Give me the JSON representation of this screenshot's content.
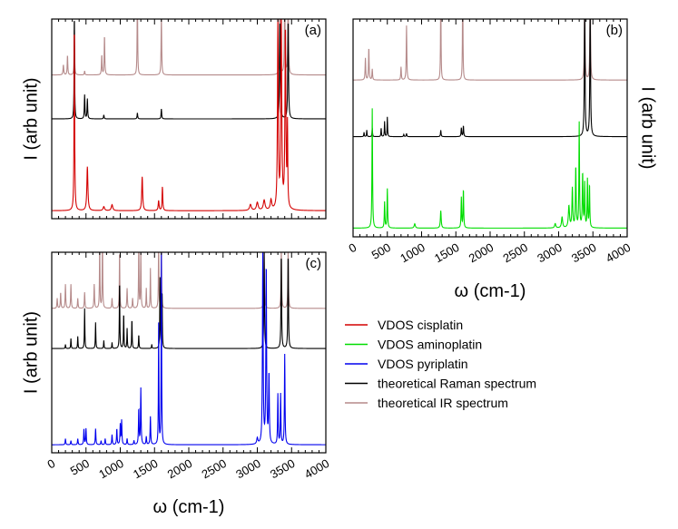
{
  "chart_data": [
    {
      "type": "line",
      "panel_label": "(a)",
      "ylabel": "I (arb unit)",
      "xlabel": "",
      "xlim": [
        0,
        4000
      ],
      "x_ticks": [],
      "show_xlabel": false,
      "ylabel_side": "left",
      "series": [
        {
          "name": "VDOS cisplatin",
          "color": "#d40000",
          "baseline": 0.04,
          "peaks": [
            [
              330,
              0.95,
              10
            ],
            [
              520,
              0.22,
              18
            ],
            [
              760,
              0.02,
              25
            ],
            [
              880,
              0.03,
              25
            ],
            [
              1320,
              0.17,
              16
            ],
            [
              1560,
              0.05,
              15
            ],
            [
              1615,
              0.12,
              12
            ],
            [
              2900,
              0.03,
              30
            ],
            [
              3000,
              0.04,
              30
            ],
            [
              3100,
              0.05,
              30
            ],
            [
              3200,
              0.05,
              25
            ],
            [
              3300,
              0.95,
              14
            ],
            [
              3350,
              0.95,
              16
            ],
            [
              3410,
              0.9,
              16
            ],
            [
              3440,
              0.4,
              10
            ]
          ]
        },
        {
          "name": "theoretical Raman spectrum",
          "color": "#000000",
          "baseline": 0.5,
          "peaks": [
            [
              330,
              0.55,
              8
            ],
            [
              480,
              0.12,
              10
            ],
            [
              520,
              0.1,
              10
            ],
            [
              760,
              0.02,
              10
            ],
            [
              1250,
              0.03,
              10
            ],
            [
              1600,
              0.05,
              10
            ],
            [
              3330,
              0.5,
              12
            ],
            [
              3450,
              0.5,
              12
            ]
          ]
        },
        {
          "name": "theoretical IR spectrum",
          "color": "#b58a8a",
          "baseline": 0.72,
          "peaks": [
            [
              170,
              0.05,
              12
            ],
            [
              230,
              0.1,
              10
            ],
            [
              330,
              0.25,
              8
            ],
            [
              480,
              0.02,
              10
            ],
            [
              730,
              0.1,
              10
            ],
            [
              770,
              0.2,
              10
            ],
            [
              1250,
              0.5,
              8
            ],
            [
              1600,
              0.3,
              10
            ],
            [
              3330,
              0.5,
              10
            ],
            [
              3400,
              0.5,
              10
            ],
            [
              3450,
              0.5,
              10
            ]
          ]
        }
      ]
    },
    {
      "type": "line",
      "panel_label": "(b)",
      "ylabel": "I (arb unit)",
      "xlabel": "ω (cm-1)",
      "xlim": [
        0,
        4000
      ],
      "x_ticks": [
        "0",
        "500",
        "1000",
        "1500",
        "2000",
        "2500",
        "3000",
        "3500",
        "4000"
      ],
      "show_xlabel": true,
      "ylabel_side": "right",
      "series": [
        {
          "name": "VDOS aminoplatin",
          "color": "#00dd00",
          "baseline": 0.04,
          "peaks": [
            [
              280,
              0.55,
              10
            ],
            [
              460,
              0.12,
              10
            ],
            [
              500,
              0.18,
              10
            ],
            [
              900,
              0.02,
              20
            ],
            [
              1280,
              0.08,
              14
            ],
            [
              1580,
              0.14,
              10
            ],
            [
              1610,
              0.18,
              10
            ],
            [
              2950,
              0.02,
              20
            ],
            [
              3050,
              0.05,
              20
            ],
            [
              3150,
              0.1,
              20
            ],
            [
              3200,
              0.18,
              14
            ],
            [
              3250,
              0.28,
              12
            ],
            [
              3300,
              0.48,
              10
            ],
            [
              3350,
              0.25,
              12
            ],
            [
              3380,
              0.2,
              10
            ],
            [
              3420,
              0.22,
              10
            ],
            [
              3450,
              0.2,
              10
            ]
          ]
        },
        {
          "name": "theoretical Raman spectrum",
          "color": "#000000",
          "baseline": 0.46,
          "peaks": [
            [
              160,
              0.02,
              8
            ],
            [
              200,
              0.03,
              8
            ],
            [
              280,
              0.04,
              8
            ],
            [
              410,
              0.04,
              8
            ],
            [
              460,
              0.07,
              8
            ],
            [
              500,
              0.09,
              8
            ],
            [
              740,
              0.01,
              10
            ],
            [
              780,
              0.015,
              10
            ],
            [
              1280,
              0.03,
              10
            ],
            [
              1580,
              0.04,
              10
            ],
            [
              1610,
              0.05,
              10
            ],
            [
              3380,
              0.6,
              12
            ],
            [
              3460,
              0.6,
              12
            ]
          ]
        },
        {
          "name": "theoretical IR spectrum",
          "color": "#b58a8a",
          "baseline": 0.72,
          "peaks": [
            [
              180,
              0.1,
              10
            ],
            [
              230,
              0.15,
              10
            ],
            [
              280,
              0.05,
              10
            ],
            [
              700,
              0.06,
              10
            ],
            [
              780,
              0.25,
              10
            ],
            [
              1280,
              0.45,
              8
            ],
            [
              1600,
              0.5,
              8
            ],
            [
              3380,
              0.5,
              10
            ],
            [
              3460,
              0.5,
              10
            ]
          ]
        }
      ]
    },
    {
      "type": "line",
      "panel_label": "(c)",
      "ylabel": "I (arb unit)",
      "xlabel": "ω (cm-1)",
      "xlim": [
        0,
        4000
      ],
      "x_ticks": [
        "0",
        "500",
        "1000",
        "1500",
        "2000",
        "2500",
        "3000",
        "3500",
        "4000"
      ],
      "show_xlabel": true,
      "ylabel_side": "left",
      "series": [
        {
          "name": "VDOS pyriplatin",
          "color": "#0000ee",
          "baseline": 0.04,
          "peaks": [
            [
              200,
              0.03,
              10
            ],
            [
              280,
              0.02,
              10
            ],
            [
              380,
              0.03,
              10
            ],
            [
              470,
              0.08,
              10
            ],
            [
              500,
              0.08,
              10
            ],
            [
              640,
              0.08,
              10
            ],
            [
              720,
              0.02,
              10
            ],
            [
              780,
              0.03,
              10
            ],
            [
              880,
              0.05,
              10
            ],
            [
              950,
              0.08,
              10
            ],
            [
              1000,
              0.1,
              10
            ],
            [
              1020,
              0.12,
              10
            ],
            [
              1100,
              0.03,
              10
            ],
            [
              1200,
              0.02,
              10
            ],
            [
              1270,
              0.18,
              10
            ],
            [
              1300,
              0.28,
              10
            ],
            [
              1380,
              0.04,
              10
            ],
            [
              1440,
              0.14,
              10
            ],
            [
              1560,
              0.6,
              8
            ],
            [
              1600,
              0.95,
              8
            ],
            [
              3000,
              0.03,
              20
            ],
            [
              3080,
              0.95,
              12
            ],
            [
              3130,
              0.9,
              12
            ],
            [
              3170,
              0.35,
              12
            ],
            [
              3300,
              0.25,
              10
            ],
            [
              3340,
              0.25,
              10
            ],
            [
              3400,
              0.45,
              10
            ]
          ]
        },
        {
          "name": "theoretical Raman spectrum",
          "color": "#000000",
          "baseline": 0.52,
          "peaks": [
            [
              200,
              0.02,
              8
            ],
            [
              280,
              0.05,
              8
            ],
            [
              380,
              0.06,
              8
            ],
            [
              480,
              0.2,
              8
            ],
            [
              640,
              0.13,
              8
            ],
            [
              760,
              0.04,
              8
            ],
            [
              880,
              0.03,
              8
            ],
            [
              990,
              0.35,
              8
            ],
            [
              1050,
              0.18,
              8
            ],
            [
              1100,
              0.1,
              8
            ],
            [
              1170,
              0.15,
              8
            ],
            [
              1270,
              0.07,
              8
            ],
            [
              1460,
              0.02,
              8
            ],
            [
              1580,
              0.35,
              8
            ],
            [
              1610,
              0.3,
              8
            ],
            [
              3100,
              0.48,
              10
            ],
            [
              3350,
              0.48,
              10
            ],
            [
              3450,
              0.48,
              10
            ]
          ]
        },
        {
          "name": "theoretical IR spectrum",
          "color": "#b58a8a",
          "baseline": 0.72,
          "peaks": [
            [
              80,
              0.05,
              10
            ],
            [
              130,
              0.08,
              10
            ],
            [
              200,
              0.12,
              10
            ],
            [
              280,
              0.12,
              10
            ],
            [
              380,
              0.05,
              10
            ],
            [
              480,
              0.08,
              10
            ],
            [
              620,
              0.12,
              10
            ],
            [
              700,
              0.35,
              8
            ],
            [
              740,
              0.4,
              8
            ],
            [
              880,
              0.05,
              10
            ],
            [
              990,
              0.3,
              8
            ],
            [
              1100,
              0.1,
              10
            ],
            [
              1180,
              0.05,
              10
            ],
            [
              1270,
              0.35,
              8
            ],
            [
              1300,
              0.3,
              8
            ],
            [
              1380,
              0.1,
              8
            ],
            [
              1440,
              0.2,
              8
            ],
            [
              1560,
              0.35,
              8
            ],
            [
              1600,
              0.35,
              8
            ],
            [
              3100,
              0.3,
              10
            ],
            [
              3350,
              0.3,
              10
            ],
            [
              3450,
              0.3,
              10
            ]
          ]
        }
      ]
    }
  ],
  "legend": {
    "placement": "bottom-right",
    "entries": [
      {
        "label": "VDOS cisplatin",
        "color": "#d40000"
      },
      {
        "label": "VDOS aminoplatin",
        "color": "#00dd00"
      },
      {
        "label": "VDOS pyriplatin",
        "color": "#0000ee"
      },
      {
        "label": "theoretical Raman spectrum",
        "color": "#000000"
      },
      {
        "label": "theoretical IR spectrum",
        "color": "#b58a8a"
      }
    ]
  }
}
